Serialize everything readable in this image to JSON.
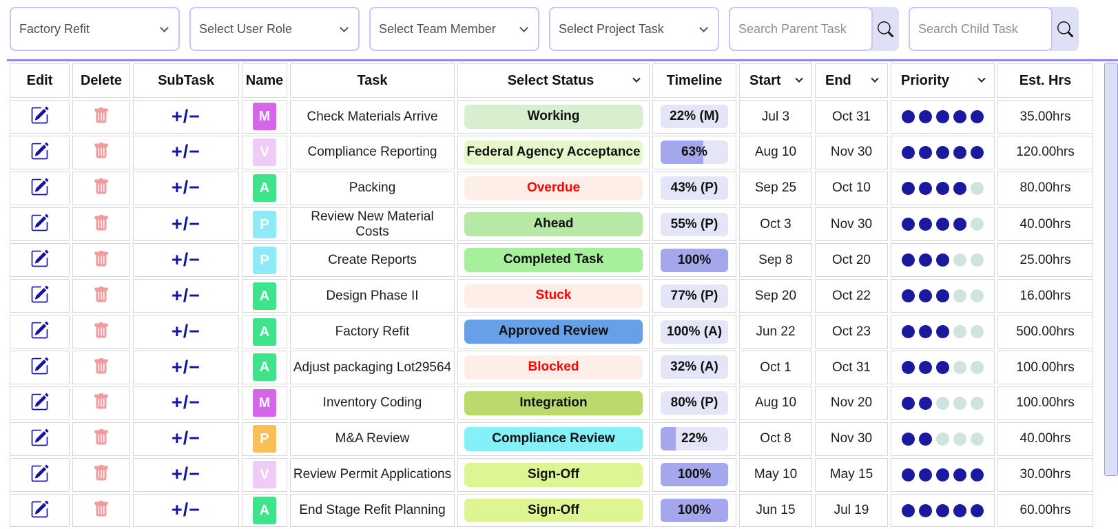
{
  "filters": {
    "project": {
      "value": "Factory Refit"
    },
    "user_role": {
      "value": "Select User Role"
    },
    "team_member": {
      "value": "Select Team Member"
    },
    "project_task": {
      "value": "Select Project Task"
    },
    "parent_search": {
      "placeholder": "Search Parent Task"
    },
    "child_search": {
      "placeholder": "Search Child Task"
    },
    "search_icon": "magnifier-icon"
  },
  "table": {
    "headers": [
      {
        "label": "Edit",
        "chevron": false
      },
      {
        "label": "Delete",
        "chevron": false
      },
      {
        "label": "SubTask",
        "chevron": false
      },
      {
        "label": "Name",
        "chevron": false
      },
      {
        "label": "Task",
        "chevron": false
      },
      {
        "label": "Select Status",
        "chevron": true,
        "center": true
      },
      {
        "label": "Timeline",
        "chevron": false
      },
      {
        "label": "Start",
        "chevron": true
      },
      {
        "label": "End",
        "chevron": true
      },
      {
        "label": "Priority",
        "chevron": true
      },
      {
        "label": "Est. Hrs",
        "chevron": false
      }
    ],
    "subtask_symbol": "+/−",
    "priority_max": 5,
    "rows": [
      {
        "badge": {
          "letter": "M",
          "color": "#d765e9"
        },
        "task": "Check Materials Arrive",
        "status": {
          "label": "Working",
          "bg": "#d7efcf",
          "text": "#111111"
        },
        "timeline": {
          "label": "22% (M)",
          "fill": null
        },
        "start": "Jul 3",
        "end": "Oct 31",
        "priority": 5,
        "est": "35.00hrs"
      },
      {
        "badge": {
          "letter": "V",
          "color": "#efcbf7"
        },
        "task": "Compliance Reporting",
        "status": {
          "label": "Federal Agency Acceptance",
          "bg": "#e6f8c9",
          "text": "#111111"
        },
        "timeline": {
          "label": "63%",
          "fill": 63
        },
        "start": "Aug 10",
        "end": "Nov 30",
        "priority": 5,
        "est": "120.00hrs"
      },
      {
        "badge": {
          "letter": "A",
          "color": "#3ee48a"
        },
        "task": "Packing",
        "status": {
          "label": "Overdue",
          "bg": "#fdefe7",
          "text": "#fe0000"
        },
        "timeline": {
          "label": "43% (P)",
          "fill": null
        },
        "start": "Sep 25",
        "end": "Oct 10",
        "priority": 4,
        "est": "80.00hrs"
      },
      {
        "badge": {
          "letter": "P",
          "color": "#8feaf7"
        },
        "task": "Review New Material Costs",
        "status": {
          "label": "Ahead",
          "bg": "#b7e8a6",
          "text": "#111111"
        },
        "timeline": {
          "label": "55% (P)",
          "fill": null
        },
        "start": "Oct 3",
        "end": "Nov 30",
        "priority": 4,
        "est": "40.00hrs"
      },
      {
        "badge": {
          "letter": "P",
          "color": "#8feaf7"
        },
        "task": "Create Reports",
        "status": {
          "label": "Completed Task",
          "bg": "#a6f09b",
          "text": "#111111"
        },
        "timeline": {
          "label": "100%",
          "fill": 100
        },
        "start": "Sep 8",
        "end": "Oct 20",
        "priority": 3,
        "est": "25.00hrs"
      },
      {
        "badge": {
          "letter": "A",
          "color": "#3ee48a"
        },
        "task": "Design Phase II",
        "status": {
          "label": "Stuck",
          "bg": "#fdefe7",
          "text": "#fe0000"
        },
        "timeline": {
          "label": "77% (P)",
          "fill": null
        },
        "start": "Sep 20",
        "end": "Oct 22",
        "priority": 3,
        "est": "16.00hrs"
      },
      {
        "badge": {
          "letter": "A",
          "color": "#3ee48a"
        },
        "task": "Factory Refit",
        "status": {
          "label": "Approved Review",
          "bg": "#66a1e8",
          "text": "#111111"
        },
        "timeline": {
          "label": "100% (A)",
          "fill": null
        },
        "start": "Jun 22",
        "end": "Oct 23",
        "priority": 3,
        "est": "500.00hrs"
      },
      {
        "badge": {
          "letter": "A",
          "color": "#3ee48a"
        },
        "task": "Adjust packaging Lot29564",
        "status": {
          "label": "Blocked",
          "bg": "#fdefe7",
          "text": "#fe0000"
        },
        "timeline": {
          "label": "32% (A)",
          "fill": null
        },
        "start": "Oct 1",
        "end": "Oct 31",
        "priority": 3,
        "est": "100.00hrs"
      },
      {
        "badge": {
          "letter": "M",
          "color": "#d765e9"
        },
        "task": "Inventory Coding",
        "status": {
          "label": "Integration",
          "bg": "#bada6e",
          "text": "#111111"
        },
        "timeline": {
          "label": "80% (P)",
          "fill": null
        },
        "start": "Aug 10",
        "end": "Nov 20",
        "priority": 2,
        "est": "100.00hrs"
      },
      {
        "badge": {
          "letter": "P",
          "color": "#f8bf57"
        },
        "task": "M&A Review",
        "status": {
          "label": "Compliance Review",
          "bg": "#83f1f7",
          "text": "#111111"
        },
        "timeline": {
          "label": "22%",
          "fill": 22
        },
        "start": "Oct 8",
        "end": "Nov 30",
        "priority": 2,
        "est": "40.00hrs"
      },
      {
        "badge": {
          "letter": "V",
          "color": "#efcbf7"
        },
        "task": "Review Permit Applications",
        "status": {
          "label": "Sign-Off",
          "bg": "#ddf593",
          "text": "#111111"
        },
        "timeline": {
          "label": "100%",
          "fill": 100
        },
        "start": "May 10",
        "end": "May 15",
        "priority": 5,
        "est": "30.00hrs"
      },
      {
        "badge": {
          "letter": "A",
          "color": "#3ee48a"
        },
        "task": "End Stage Refit Planning",
        "status": {
          "label": "Sign-Off",
          "bg": "#ddf593",
          "text": "#111111"
        },
        "timeline": {
          "label": "100%",
          "fill": 100
        },
        "start": "Jun 15",
        "end": "Jul 19",
        "priority": 5,
        "est": "60.00hrs"
      }
    ]
  },
  "colors": {
    "filter_border": "#c7c5f9",
    "navy_icon": "#1414a3",
    "trash_pink": "#ef9c9f",
    "timeline_track": "#e4e6f8",
    "timeline_fill": "#a5a7ec",
    "priority_dot_on": "#1a1a9e",
    "priority_dot_off": "#cfe4de",
    "table_top_line": "#8d8aee",
    "cell_border": "#d6d6d6",
    "search_button_bg": "#dfdff8",
    "scrollbar_track": "#dce0f6"
  }
}
